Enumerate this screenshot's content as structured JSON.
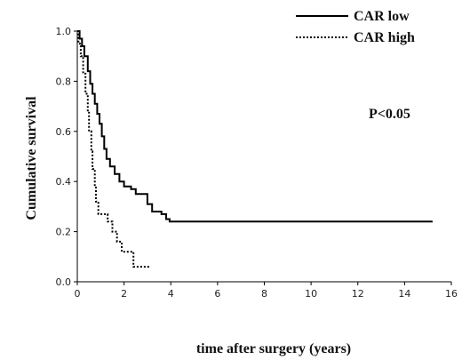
{
  "chart_data": {
    "type": "line",
    "xlabel": "time after surgery (years)",
    "ylabel": "Cumulative survival",
    "xlim": [
      0,
      16
    ],
    "ylim": [
      0,
      1.0
    ],
    "xticks": [
      0,
      2,
      4,
      6,
      8,
      10,
      12,
      14,
      16
    ],
    "yticks": [
      0.0,
      0.2,
      0.4,
      0.6,
      0.8,
      1.0
    ],
    "xtick_labels": [
      "0",
      "2",
      "4",
      "6",
      "8",
      "10",
      "12",
      "14",
      "16"
    ],
    "ytick_labels": [
      "0.0",
      "0.2",
      "0.4",
      "0.6",
      "0.8",
      "1.0"
    ],
    "grid": false,
    "legend_position": "top-right",
    "annotation": "P<0.05",
    "series": [
      {
        "name": "CAR low",
        "style": "solid",
        "color": "#000000",
        "points": [
          [
            0,
            1.0
          ],
          [
            0.1,
            1.0
          ],
          [
            0.1,
            0.97
          ],
          [
            0.2,
            0.97
          ],
          [
            0.2,
            0.94
          ],
          [
            0.3,
            0.94
          ],
          [
            0.3,
            0.9
          ],
          [
            0.45,
            0.9
          ],
          [
            0.45,
            0.84
          ],
          [
            0.55,
            0.84
          ],
          [
            0.55,
            0.79
          ],
          [
            0.65,
            0.79
          ],
          [
            0.65,
            0.75
          ],
          [
            0.75,
            0.75
          ],
          [
            0.75,
            0.71
          ],
          [
            0.85,
            0.71
          ],
          [
            0.85,
            0.67
          ],
          [
            0.95,
            0.67
          ],
          [
            0.95,
            0.63
          ],
          [
            1.05,
            0.63
          ],
          [
            1.05,
            0.58
          ],
          [
            1.15,
            0.58
          ],
          [
            1.15,
            0.53
          ],
          [
            1.25,
            0.53
          ],
          [
            1.25,
            0.49
          ],
          [
            1.4,
            0.49
          ],
          [
            1.4,
            0.46
          ],
          [
            1.6,
            0.46
          ],
          [
            1.6,
            0.43
          ],
          [
            1.8,
            0.43
          ],
          [
            1.8,
            0.4
          ],
          [
            2.0,
            0.4
          ],
          [
            2.0,
            0.38
          ],
          [
            2.3,
            0.38
          ],
          [
            2.3,
            0.37
          ],
          [
            2.5,
            0.37
          ],
          [
            2.5,
            0.35
          ],
          [
            3.0,
            0.35
          ],
          [
            3.0,
            0.31
          ],
          [
            3.2,
            0.31
          ],
          [
            3.2,
            0.28
          ],
          [
            3.6,
            0.28
          ],
          [
            3.6,
            0.27
          ],
          [
            3.8,
            0.27
          ],
          [
            3.8,
            0.25
          ],
          [
            3.95,
            0.25
          ],
          [
            3.95,
            0.24
          ],
          [
            15.2,
            0.24
          ]
        ]
      },
      {
        "name": "CAR high",
        "style": "dotted",
        "color": "#000000",
        "points": [
          [
            0,
            1.0
          ],
          [
            0.05,
            1.0
          ],
          [
            0.05,
            0.95
          ],
          [
            0.15,
            0.95
          ],
          [
            0.15,
            0.9
          ],
          [
            0.25,
            0.9
          ],
          [
            0.25,
            0.83
          ],
          [
            0.35,
            0.83
          ],
          [
            0.35,
            0.75
          ],
          [
            0.45,
            0.75
          ],
          [
            0.45,
            0.68
          ],
          [
            0.5,
            0.68
          ],
          [
            0.5,
            0.6
          ],
          [
            0.6,
            0.6
          ],
          [
            0.6,
            0.52
          ],
          [
            0.65,
            0.52
          ],
          [
            0.65,
            0.45
          ],
          [
            0.75,
            0.45
          ],
          [
            0.75,
            0.38
          ],
          [
            0.8,
            0.38
          ],
          [
            0.8,
            0.32
          ],
          [
            0.9,
            0.32
          ],
          [
            0.9,
            0.27
          ],
          [
            1.3,
            0.27
          ],
          [
            1.3,
            0.24
          ],
          [
            1.5,
            0.24
          ],
          [
            1.5,
            0.2
          ],
          [
            1.7,
            0.2
          ],
          [
            1.7,
            0.16
          ],
          [
            1.9,
            0.16
          ],
          [
            1.9,
            0.12
          ],
          [
            2.4,
            0.12
          ],
          [
            2.4,
            0.06
          ],
          [
            3.1,
            0.06
          ]
        ]
      }
    ]
  }
}
